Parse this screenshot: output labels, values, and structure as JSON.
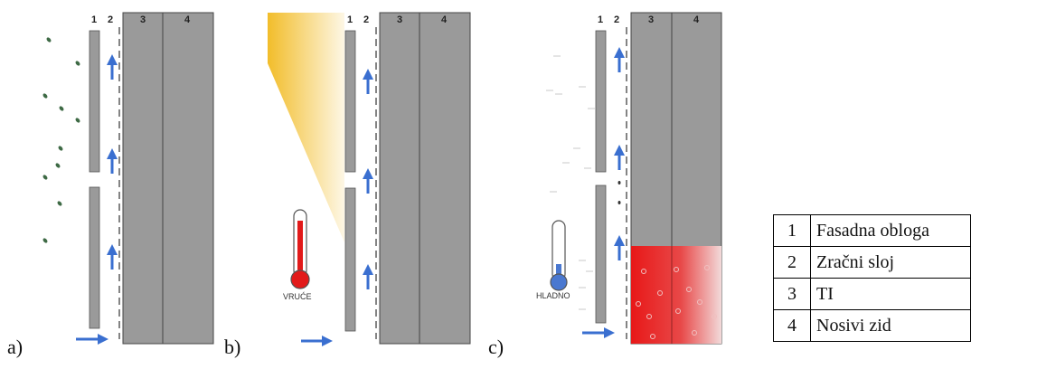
{
  "panels": [
    {
      "label": "a)",
      "layer_numbers": [
        "1",
        "2",
        "3",
        "4"
      ]
    },
    {
      "label": "b)",
      "layer_numbers": [
        "1",
        "2",
        "3",
        "4"
      ],
      "thermometer_label": "VRUĆE"
    },
    {
      "label": "c)",
      "layer_numbers": [
        "1",
        "2",
        "3",
        "4"
      ],
      "thermometer_label": "HLADNO"
    }
  ],
  "legend": [
    {
      "key": "1",
      "value": "Fasadna obloga"
    },
    {
      "key": "2",
      "value": "Zračni sloj"
    },
    {
      "key": "3",
      "value": "TI"
    },
    {
      "key": "4",
      "value": "Nosivi zid"
    }
  ],
  "colors": {
    "wall": "#9a9a9a",
    "arrow": "#3a6fd0",
    "sun": "#f2bd2a",
    "hot": "#e21a1a",
    "cold": "#4a78d0",
    "rain": "#3e6a45"
  }
}
